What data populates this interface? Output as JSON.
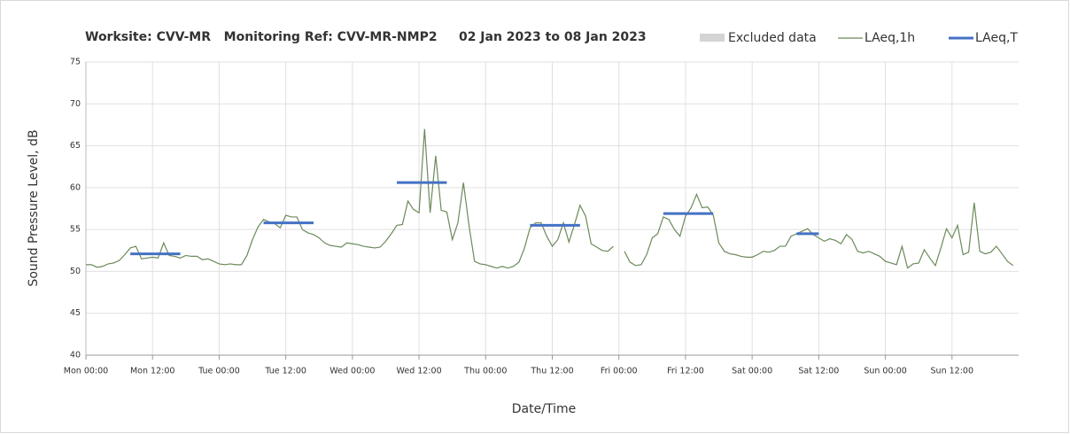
{
  "chart_data": {
    "type": "line",
    "title": "Worksite: CVV-MR   Monitoring Ref: CVV-MR-NMP2     02 Jan 2023 to 08 Jan 2023",
    "xlabel": "Date/Time",
    "ylabel": "Sound Pressure Level, dB",
    "excluded": {
      "name": "Excluded data",
      "color": "#d4d4d4"
    },
    "x": [
      0,
      1,
      2,
      3,
      4,
      5,
      6,
      7,
      8,
      9,
      10,
      11,
      12,
      13,
      14,
      15,
      16,
      17,
      18,
      19,
      20,
      21,
      22,
      23,
      24,
      25,
      26,
      27,
      28,
      29,
      30,
      31,
      32,
      33,
      34,
      35,
      36,
      37,
      38,
      39,
      40,
      41,
      42,
      43,
      44,
      45,
      46,
      47,
      48,
      49,
      50,
      51,
      52,
      53,
      54,
      55,
      56,
      57,
      58,
      59,
      60,
      61,
      62,
      63,
      64,
      65,
      66,
      67,
      68,
      69,
      70,
      71,
      72,
      73,
      74,
      75,
      76,
      77,
      78,
      79,
      80,
      81,
      82,
      83,
      84,
      85,
      86,
      87,
      88,
      89,
      90,
      91,
      92,
      93,
      94,
      95,
      96,
      97,
      98,
      99,
      100,
      101,
      102,
      103,
      104,
      105,
      106,
      107,
      108,
      109,
      110,
      111,
      112,
      113,
      114,
      115,
      116,
      117,
      118,
      119,
      120,
      121,
      122,
      123,
      124,
      125,
      126,
      127,
      128,
      129,
      130,
      131,
      132,
      133,
      134,
      135,
      136,
      137,
      138,
      139,
      140,
      141,
      142,
      143,
      144,
      145,
      146,
      147,
      148,
      149,
      150,
      151,
      152,
      153,
      154,
      155,
      156,
      157,
      158,
      159,
      160,
      161,
      162,
      163,
      164,
      165,
      166,
      167
    ],
    "series": [
      {
        "name": "LAeq,1h",
        "color": "#6b8a5a",
        "width": 1.2,
        "values": [
          50.8,
          50.8,
          50.5,
          50.6,
          50.9,
          51.0,
          51.3,
          52.0,
          52.8,
          53.0,
          51.5,
          51.6,
          51.7,
          51.6,
          53.4,
          51.9,
          51.8,
          51.6,
          51.9,
          51.8,
          51.8,
          51.4,
          51.5,
          51.2,
          50.9,
          50.8,
          50.9,
          50.8,
          50.8,
          51.9,
          53.8,
          55.3,
          56.2,
          55.9,
          55.7,
          55.2,
          56.7,
          56.5,
          56.5,
          55.0,
          54.6,
          54.4,
          54.0,
          53.4,
          53.1,
          53.0,
          52.9,
          53.4,
          53.3,
          53.2,
          53.0,
          52.9,
          52.8,
          52.9,
          53.6,
          54.5,
          55.5,
          55.6,
          58.4,
          57.4,
          57.0,
          67.0,
          57.0,
          63.8,
          57.3,
          57.1,
          53.8,
          55.8,
          60.6,
          55.5,
          51.2,
          50.9,
          50.8,
          50.6,
          50.4,
          50.6,
          50.4,
          50.6,
          51.1,
          52.8,
          55.2,
          55.8,
          55.8,
          54.2,
          53.0,
          53.8,
          55.8,
          53.5,
          55.6,
          57.9,
          56.6,
          53.3,
          52.9,
          52.5,
          52.4,
          53.0,
          null,
          52.4,
          51.1,
          50.7,
          50.8,
          52.0,
          54.0,
          54.5,
          56.5,
          56.2,
          55.0,
          54.2,
          56.6,
          57.6,
          59.2,
          57.6,
          57.7,
          56.7,
          53.4,
          52.4,
          52.1,
          52.0,
          51.8,
          51.7,
          51.7,
          52.0,
          52.4,
          52.3,
          52.5,
          53.0,
          53.0,
          54.2,
          54.5,
          54.8,
          55.1,
          54.4,
          54.0,
          53.6,
          53.9,
          53.7,
          53.3,
          54.4,
          53.8,
          52.4,
          52.2,
          52.4,
          52.1,
          51.8,
          51.2,
          51.0,
          50.8,
          53.0,
          50.4,
          50.9,
          51.0,
          52.6,
          51.6,
          50.7,
          52.8,
          55.1,
          54.0,
          55.5,
          52.0,
          52.3,
          58.2,
          52.4,
          52.1,
          52.3,
          53.0,
          52.1,
          51.2,
          50.7
        ]
      },
      {
        "name": "LAeq,T",
        "color": "#4472c4",
        "width": 3,
        "values": [
          null,
          null,
          null,
          null,
          null,
          null,
          null,
          null,
          52.1,
          52.1,
          52.1,
          52.1,
          52.1,
          52.1,
          52.1,
          52.1,
          52.1,
          52.1,
          null,
          null,
          null,
          null,
          null,
          null,
          null,
          null,
          null,
          null,
          null,
          null,
          null,
          null,
          55.8,
          55.8,
          55.8,
          55.8,
          55.8,
          55.8,
          55.8,
          55.8,
          55.8,
          55.8,
          null,
          null,
          null,
          null,
          null,
          null,
          null,
          null,
          null,
          null,
          null,
          null,
          null,
          null,
          60.6,
          60.6,
          60.6,
          60.6,
          60.6,
          60.6,
          60.6,
          60.6,
          60.6,
          60.6,
          null,
          null,
          null,
          null,
          null,
          null,
          null,
          null,
          null,
          null,
          null,
          null,
          null,
          null,
          55.5,
          55.5,
          55.5,
          55.5,
          55.5,
          55.5,
          55.5,
          55.5,
          55.5,
          55.5,
          null,
          null,
          null,
          null,
          null,
          null,
          null,
          null,
          null,
          null,
          null,
          null,
          null,
          null,
          56.9,
          56.9,
          56.9,
          56.9,
          56.9,
          56.9,
          56.9,
          56.9,
          56.9,
          56.9,
          null,
          null,
          null,
          null,
          null,
          null,
          null,
          null,
          null,
          null,
          null,
          null,
          null,
          null,
          54.5,
          54.5,
          54.5,
          54.5,
          54.5,
          null,
          null,
          null,
          null,
          null,
          null,
          null,
          null,
          null,
          null,
          null,
          null,
          null,
          null,
          null,
          null,
          null,
          null,
          null,
          null,
          null,
          null,
          null,
          null,
          null,
          null,
          null,
          null,
          null,
          null,
          null,
          null,
          null,
          null,
          null
        ]
      }
    ],
    "xlim": [
      0,
      168
    ],
    "xticks": [
      {
        "value": 0,
        "label": "Mon 00:00"
      },
      {
        "value": 12,
        "label": "Mon 12:00"
      },
      {
        "value": 24,
        "label": "Tue 00:00"
      },
      {
        "value": 36,
        "label": "Tue 12:00"
      },
      {
        "value": 48,
        "label": "Wed 00:00"
      },
      {
        "value": 60,
        "label": "Wed 12:00"
      },
      {
        "value": 72,
        "label": "Thu 00:00"
      },
      {
        "value": 84,
        "label": "Thu 12:00"
      },
      {
        "value": 96,
        "label": "Fri 00:00"
      },
      {
        "value": 108,
        "label": "Fri 12:00"
      },
      {
        "value": 120,
        "label": "Sat 00:00"
      },
      {
        "value": 132,
        "label": "Sat 12:00"
      },
      {
        "value": 144,
        "label": "Sun 00:00"
      },
      {
        "value": 156,
        "label": "Sun 12:00"
      }
    ],
    "ylim": [
      40,
      75
    ],
    "yticks": [
      40,
      45,
      50,
      55,
      60,
      65,
      70,
      75
    ],
    "grid": true
  }
}
